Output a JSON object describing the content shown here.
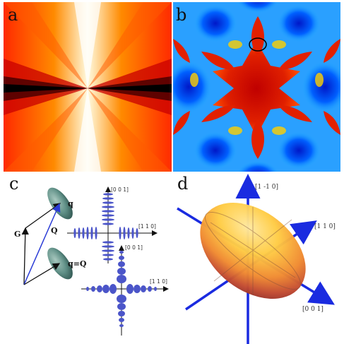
{
  "panels": {
    "a": {
      "label": "a"
    },
    "b": {
      "label": "b"
    },
    "c": {
      "label": "c",
      "vectors": {
        "q": "q",
        "Q": "Q",
        "G": "G",
        "q_eq_Q": "q=Q"
      },
      "upper_axes": {
        "vertical": "[0 0 1]",
        "horizontal": "[1 1 0]"
      },
      "lower_axes": {
        "vertical": "[0 0 1]",
        "horizontal": "[1 1 0]"
      }
    },
    "d": {
      "label": "d",
      "axes": {
        "top": "[1 -1 0]",
        "right": "[1 1 0]",
        "bottom": "[0 0 1]"
      }
    }
  },
  "colors": {
    "ellipsoid_teal": "#5f8f86",
    "arrow_blue": "#2a3bd6",
    "ellipse_blue": "#4b55c9",
    "axis_black": "#111111"
  }
}
